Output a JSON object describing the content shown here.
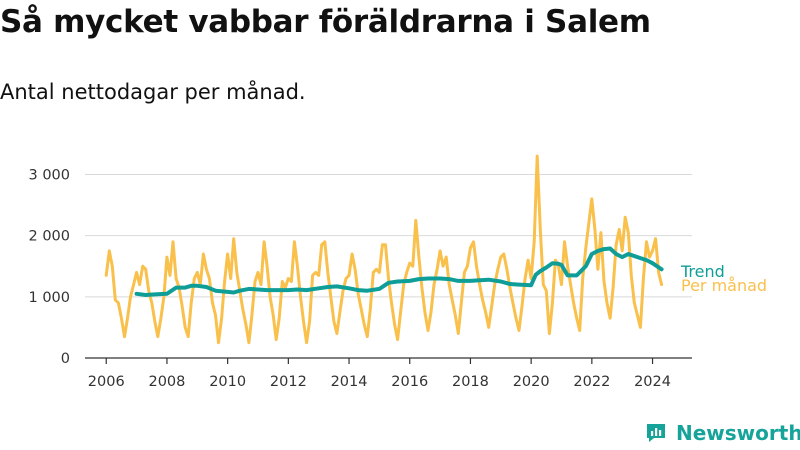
{
  "title": "Så mycket vabbar föräldrarna i Salem",
  "subtitle": "Antal nettodagar per månad.",
  "brand": {
    "name": "Newsworthy"
  },
  "colors": {
    "trend": "#0f9e97",
    "monthly": "#f9c04c",
    "grid": "#d9d9d9",
    "axis": "#333333"
  },
  "chart_data": {
    "type": "line",
    "xlim": [
      2005.3,
      2025.3
    ],
    "ylim": [
      0,
      3400
    ],
    "grid": true,
    "legend": "right",
    "x_ticks": [
      {
        "value": 2006,
        "label": "2006"
      },
      {
        "value": 2008,
        "label": "2008"
      },
      {
        "value": 2010,
        "label": "2010"
      },
      {
        "value": 2012,
        "label": "2012"
      },
      {
        "value": 2014,
        "label": "2014"
      },
      {
        "value": 2016,
        "label": "2016"
      },
      {
        "value": 2018,
        "label": "2018"
      },
      {
        "value": 2020,
        "label": "2020"
      },
      {
        "value": 2022,
        "label": "2022"
      },
      {
        "value": 2024,
        "label": "2024"
      }
    ],
    "y_ticks": [
      {
        "value": 0,
        "label": "0"
      },
      {
        "value": 1000,
        "label": "1 000"
      },
      {
        "value": 2000,
        "label": "2 000"
      },
      {
        "value": 3000,
        "label": "3 000"
      }
    ],
    "series": [
      {
        "name": "Per månad",
        "color": "#f9c04c",
        "points": [
          [
            2006.0,
            1350
          ],
          [
            2006.1,
            1750
          ],
          [
            2006.2,
            1500
          ],
          [
            2006.3,
            950
          ],
          [
            2006.4,
            900
          ],
          [
            2006.5,
            650
          ],
          [
            2006.6,
            350
          ],
          [
            2006.7,
            650
          ],
          [
            2006.8,
            1000
          ],
          [
            2006.9,
            1200
          ],
          [
            2007.0,
            1400
          ],
          [
            2007.1,
            1200
          ],
          [
            2007.2,
            1500
          ],
          [
            2007.3,
            1450
          ],
          [
            2007.4,
            1100
          ],
          [
            2007.5,
            900
          ],
          [
            2007.6,
            600
          ],
          [
            2007.7,
            350
          ],
          [
            2007.8,
            650
          ],
          [
            2007.9,
            1000
          ],
          [
            2008.0,
            1650
          ],
          [
            2008.1,
            1350
          ],
          [
            2008.2,
            1900
          ],
          [
            2008.3,
            1300
          ],
          [
            2008.4,
            1150
          ],
          [
            2008.5,
            850
          ],
          [
            2008.6,
            500
          ],
          [
            2008.7,
            350
          ],
          [
            2008.8,
            900
          ],
          [
            2008.9,
            1300
          ],
          [
            2009.0,
            1400
          ],
          [
            2009.1,
            1200
          ],
          [
            2009.2,
            1700
          ],
          [
            2009.3,
            1450
          ],
          [
            2009.4,
            1300
          ],
          [
            2009.5,
            900
          ],
          [
            2009.6,
            700
          ],
          [
            2009.7,
            250
          ],
          [
            2009.8,
            650
          ],
          [
            2009.9,
            1250
          ],
          [
            2010.0,
            1700
          ],
          [
            2010.1,
            1300
          ],
          [
            2010.2,
            1950
          ],
          [
            2010.3,
            1400
          ],
          [
            2010.4,
            1100
          ],
          [
            2010.5,
            800
          ],
          [
            2010.6,
            550
          ],
          [
            2010.7,
            250
          ],
          [
            2010.8,
            700
          ],
          [
            2010.9,
            1250
          ],
          [
            2011.0,
            1400
          ],
          [
            2011.1,
            1200
          ],
          [
            2011.2,
            1900
          ],
          [
            2011.3,
            1500
          ],
          [
            2011.4,
            1000
          ],
          [
            2011.5,
            700
          ],
          [
            2011.6,
            300
          ],
          [
            2011.7,
            650
          ],
          [
            2011.8,
            1250
          ],
          [
            2011.9,
            1150
          ],
          [
            2012.0,
            1300
          ],
          [
            2012.1,
            1250
          ],
          [
            2012.2,
            1900
          ],
          [
            2012.3,
            1500
          ],
          [
            2012.4,
            1000
          ],
          [
            2012.5,
            600
          ],
          [
            2012.6,
            250
          ],
          [
            2012.7,
            600
          ],
          [
            2012.8,
            1350
          ],
          [
            2012.9,
            1400
          ],
          [
            2013.0,
            1350
          ],
          [
            2013.1,
            1850
          ],
          [
            2013.2,
            1900
          ],
          [
            2013.3,
            1400
          ],
          [
            2013.4,
            1000
          ],
          [
            2013.5,
            600
          ],
          [
            2013.6,
            400
          ],
          [
            2013.7,
            750
          ],
          [
            2013.8,
            1100
          ],
          [
            2013.9,
            1300
          ],
          [
            2014.0,
            1350
          ],
          [
            2014.1,
            1700
          ],
          [
            2014.2,
            1450
          ],
          [
            2014.3,
            1050
          ],
          [
            2014.4,
            800
          ],
          [
            2014.5,
            550
          ],
          [
            2014.6,
            350
          ],
          [
            2014.7,
            800
          ],
          [
            2014.8,
            1400
          ],
          [
            2014.9,
            1450
          ],
          [
            2015.0,
            1400
          ],
          [
            2015.1,
            1850
          ],
          [
            2015.2,
            1850
          ],
          [
            2015.3,
            1300
          ],
          [
            2015.4,
            900
          ],
          [
            2015.5,
            550
          ],
          [
            2015.6,
            300
          ],
          [
            2015.7,
            750
          ],
          [
            2015.8,
            1200
          ],
          [
            2015.9,
            1400
          ],
          [
            2016.0,
            1550
          ],
          [
            2016.1,
            1500
          ],
          [
            2016.2,
            2250
          ],
          [
            2016.3,
            1650
          ],
          [
            2016.4,
            1150
          ],
          [
            2016.5,
            750
          ],
          [
            2016.6,
            450
          ],
          [
            2016.7,
            750
          ],
          [
            2016.8,
            1200
          ],
          [
            2016.9,
            1450
          ],
          [
            2017.0,
            1750
          ],
          [
            2017.1,
            1500
          ],
          [
            2017.2,
            1650
          ],
          [
            2017.3,
            1200
          ],
          [
            2017.4,
            950
          ],
          [
            2017.5,
            700
          ],
          [
            2017.6,
            400
          ],
          [
            2017.7,
            900
          ],
          [
            2017.8,
            1400
          ],
          [
            2017.9,
            1500
          ],
          [
            2018.0,
            1800
          ],
          [
            2018.1,
            1900
          ],
          [
            2018.2,
            1500
          ],
          [
            2018.3,
            1200
          ],
          [
            2018.4,
            950
          ],
          [
            2018.5,
            750
          ],
          [
            2018.6,
            500
          ],
          [
            2018.7,
            850
          ],
          [
            2018.8,
            1200
          ],
          [
            2018.9,
            1450
          ],
          [
            2019.0,
            1650
          ],
          [
            2019.1,
            1700
          ],
          [
            2019.2,
            1450
          ],
          [
            2019.3,
            1150
          ],
          [
            2019.4,
            900
          ],
          [
            2019.5,
            650
          ],
          [
            2019.6,
            450
          ],
          [
            2019.7,
            850
          ],
          [
            2019.8,
            1300
          ],
          [
            2019.9,
            1600
          ],
          [
            2020.0,
            1300
          ],
          [
            2020.1,
            1900
          ],
          [
            2020.2,
            3300
          ],
          [
            2020.3,
            2100
          ],
          [
            2020.4,
            1200
          ],
          [
            2020.5,
            1100
          ],
          [
            2020.6,
            400
          ],
          [
            2020.7,
            900
          ],
          [
            2020.8,
            1600
          ],
          [
            2020.9,
            1500
          ],
          [
            2021.0,
            1200
          ],
          [
            2021.1,
            1900
          ],
          [
            2021.2,
            1500
          ],
          [
            2021.3,
            1200
          ],
          [
            2021.4,
            900
          ],
          [
            2021.5,
            650
          ],
          [
            2021.6,
            450
          ],
          [
            2021.7,
            1300
          ],
          [
            2021.8,
            1800
          ],
          [
            2021.9,
            2200
          ],
          [
            2022.0,
            2600
          ],
          [
            2022.1,
            2100
          ],
          [
            2022.2,
            1450
          ],
          [
            2022.3,
            2050
          ],
          [
            2022.4,
            1250
          ],
          [
            2022.5,
            900
          ],
          [
            2022.6,
            650
          ],
          [
            2022.7,
            1150
          ],
          [
            2022.8,
            1850
          ],
          [
            2022.9,
            2100
          ],
          [
            2023.0,
            1750
          ],
          [
            2023.1,
            2300
          ],
          [
            2023.2,
            2050
          ],
          [
            2023.3,
            1350
          ],
          [
            2023.4,
            900
          ],
          [
            2023.5,
            700
          ],
          [
            2023.6,
            500
          ],
          [
            2023.7,
            1300
          ],
          [
            2023.8,
            1900
          ],
          [
            2023.9,
            1650
          ],
          [
            2024.0,
            1750
          ],
          [
            2024.1,
            1950
          ],
          [
            2024.2,
            1400
          ],
          [
            2024.3,
            1200
          ]
        ]
      },
      {
        "name": "Trend",
        "color": "#0f9e97",
        "points": [
          [
            2007.0,
            1050
          ],
          [
            2007.3,
            1030
          ],
          [
            2007.6,
            1040
          ],
          [
            2008.0,
            1050
          ],
          [
            2008.3,
            1150
          ],
          [
            2008.6,
            1150
          ],
          [
            2008.8,
            1180
          ],
          [
            2009.0,
            1180
          ],
          [
            2009.3,
            1160
          ],
          [
            2009.6,
            1100
          ],
          [
            2010.0,
            1080
          ],
          [
            2010.2,
            1070
          ],
          [
            2010.4,
            1100
          ],
          [
            2010.7,
            1130
          ],
          [
            2011.0,
            1120
          ],
          [
            2011.3,
            1110
          ],
          [
            2011.6,
            1110
          ],
          [
            2012.0,
            1110
          ],
          [
            2012.3,
            1120
          ],
          [
            2012.6,
            1110
          ],
          [
            2013.0,
            1140
          ],
          [
            2013.3,
            1160
          ],
          [
            2013.6,
            1170
          ],
          [
            2014.0,
            1140
          ],
          [
            2014.3,
            1110
          ],
          [
            2014.6,
            1100
          ],
          [
            2015.0,
            1130
          ],
          [
            2015.3,
            1230
          ],
          [
            2015.6,
            1250
          ],
          [
            2016.0,
            1260
          ],
          [
            2016.3,
            1290
          ],
          [
            2016.6,
            1300
          ],
          [
            2017.0,
            1300
          ],
          [
            2017.3,
            1290
          ],
          [
            2017.6,
            1260
          ],
          [
            2018.0,
            1260
          ],
          [
            2018.3,
            1270
          ],
          [
            2018.6,
            1280
          ],
          [
            2019.0,
            1250
          ],
          [
            2019.3,
            1210
          ],
          [
            2019.6,
            1200
          ],
          [
            2020.0,
            1190
          ],
          [
            2020.15,
            1360
          ],
          [
            2020.3,
            1420
          ],
          [
            2020.5,
            1480
          ],
          [
            2020.7,
            1550
          ],
          [
            2020.9,
            1540
          ],
          [
            2021.0,
            1520
          ],
          [
            2021.2,
            1350
          ],
          [
            2021.5,
            1350
          ],
          [
            2021.8,
            1500
          ],
          [
            2022.0,
            1700
          ],
          [
            2022.2,
            1750
          ],
          [
            2022.4,
            1780
          ],
          [
            2022.6,
            1790
          ],
          [
            2022.8,
            1700
          ],
          [
            2023.0,
            1650
          ],
          [
            2023.2,
            1700
          ],
          [
            2023.5,
            1650
          ],
          [
            2023.8,
            1600
          ],
          [
            2024.0,
            1550
          ],
          [
            2024.3,
            1450
          ]
        ]
      }
    ]
  }
}
